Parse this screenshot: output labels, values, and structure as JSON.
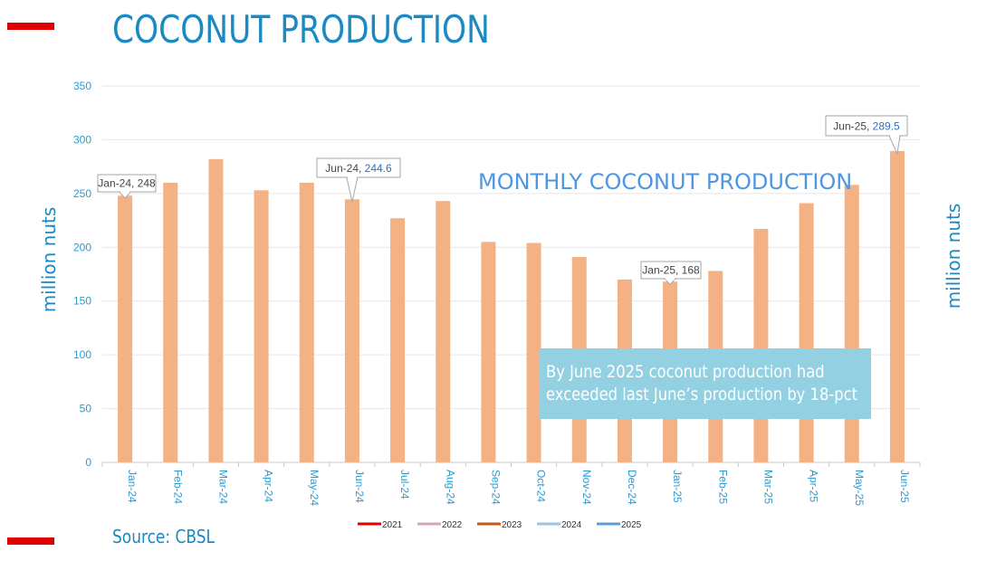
{
  "title": "COCONUT PRODUCTION",
  "source": "Source: CBSL",
  "callout": {
    "line1": "By June 2025 coconut production had",
    "line2": "exceeded last June’s production by 18-pct"
  },
  "colors": {
    "bar": "#f4b183",
    "accent": "#1b8ac2",
    "red_marker": "#e00000",
    "callout_bg": "#92d0e2"
  },
  "chart_data": {
    "type": "bar",
    "title": "MONTHLY COCONUT PRODUCTION",
    "ylabel": "million nuts",
    "ylabel_right": "million nuts",
    "ylim": [
      0,
      350
    ],
    "yticks": [
      0,
      50,
      100,
      150,
      200,
      250,
      300,
      350
    ],
    "grid": true,
    "categories": [
      "Jan-24",
      "Feb-24",
      "Mar-24",
      "Apr-24",
      "May-24",
      "Jun-24",
      "Jul-24",
      "Aug-24",
      "Sep-24",
      "Oct-24",
      "Nov-24",
      "Dec-24",
      "Jan-25",
      "Feb-25",
      "Mar-25",
      "Apr-25",
      "May-25",
      "Jun-25"
    ],
    "values": [
      248,
      260,
      282,
      253,
      260,
      244.6,
      227,
      243,
      205,
      204,
      191,
      170,
      168,
      178,
      217,
      241,
      258,
      289.5
    ],
    "annotations": [
      {
        "category": "Jan-24",
        "label": "Jan-24, ",
        "value": "248"
      },
      {
        "category": "Jun-24",
        "label": "Jun-24, ",
        "value": "244.6"
      },
      {
        "category": "Jan-25",
        "label": "Jan-25, ",
        "value": "168"
      },
      {
        "category": "Jun-25",
        "label": "Jun-25, ",
        "value": "289.5"
      }
    ],
    "legend": {
      "position": "bottom",
      "entries": [
        {
          "name": "2021",
          "color": "#e00000"
        },
        {
          "name": "2022",
          "color": "#d9a3b8"
        },
        {
          "name": "2023",
          "color": "#c55a11"
        },
        {
          "name": "2024",
          "color": "#9dc3e6"
        },
        {
          "name": "2025",
          "color": "#5b9bd5"
        }
      ]
    }
  }
}
